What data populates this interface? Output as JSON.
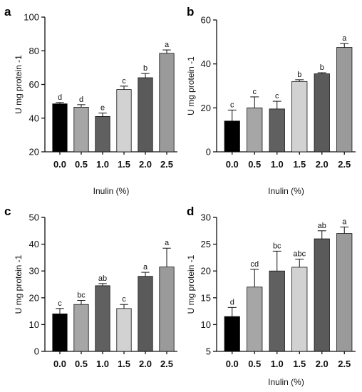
{
  "chart_data": [
    {
      "panel": "a",
      "type": "bar",
      "categories": [
        "0.0",
        "0.5",
        "1.0",
        "1.5",
        "2.0",
        "2.5"
      ],
      "values": [
        48.5,
        46.5,
        41,
        57,
        64,
        78.5
      ],
      "errors": [
        0.8,
        1.5,
        2,
        2,
        2.5,
        2
      ],
      "significance": [
        "d",
        "d",
        "e",
        "c",
        "b",
        "a"
      ],
      "bar_colors": [
        "#000000",
        "#a6a6a6",
        "#606060",
        "#d2d2d2",
        "#5a5a5a",
        "#9a9a9a"
      ],
      "ylabel": "U mg protein -1",
      "xlabel": "Inulin (%)",
      "ylim": [
        20,
        100
      ],
      "yticks": [
        "20",
        "40",
        "60",
        "80",
        "100"
      ]
    },
    {
      "panel": "b",
      "type": "bar",
      "categories": [
        "0.0",
        "0.5",
        "1.0",
        "1.5",
        "2.0",
        "2.5"
      ],
      "values": [
        14,
        20,
        19.5,
        32,
        35.5,
        47.5
      ],
      "errors": [
        5,
        5,
        3.5,
        0.8,
        0.5,
        1.8
      ],
      "significance": [
        "c",
        "c",
        "c",
        "b",
        "b",
        "a"
      ],
      "bar_colors": [
        "#000000",
        "#a6a6a6",
        "#606060",
        "#d2d2d2",
        "#5a5a5a",
        "#9a9a9a"
      ],
      "ylabel": "U mg protein -1",
      "xlabel": "Inulin (%)",
      "ylim": [
        0,
        60
      ],
      "yticks": [
        "0",
        "20",
        "40",
        "60"
      ]
    },
    {
      "panel": "c",
      "type": "bar",
      "categories": [
        "0.0",
        "0.5",
        "1.0",
        "1.5",
        "2.0",
        "2.5"
      ],
      "values": [
        14,
        17.5,
        24.5,
        16,
        28,
        31.5
      ],
      "errors": [
        2,
        1.5,
        0.8,
        1.5,
        1.5,
        7
      ],
      "significance": [
        "c",
        "bc",
        "ab",
        "c",
        "a",
        "a"
      ],
      "bar_colors": [
        "#000000",
        "#a6a6a6",
        "#606060",
        "#d2d2d2",
        "#5a5a5a",
        "#9a9a9a"
      ],
      "ylabel": "U mg protein -1",
      "xlabel": "",
      "ylim": [
        0,
        50
      ],
      "yticks": [
        "0",
        "10",
        "20",
        "30",
        "40",
        "50"
      ]
    },
    {
      "panel": "d",
      "type": "bar",
      "categories": [
        "0.0",
        "0.5",
        "1.0",
        "1.5",
        "2.0",
        "2.5"
      ],
      "values": [
        11.5,
        17,
        20,
        20.7,
        26,
        27
      ],
      "errors": [
        1.7,
        3.3,
        3.7,
        1.5,
        1.5,
        1.2
      ],
      "significance": [
        "d",
        "cd",
        "bc",
        "abc",
        "ab",
        "a"
      ],
      "bar_colors": [
        "#000000",
        "#a6a6a6",
        "#606060",
        "#d2d2d2",
        "#5a5a5a",
        "#9a9a9a"
      ],
      "ylabel": "U mg protein -1",
      "xlabel": "Inulin (%)",
      "ylim": [
        5,
        30
      ],
      "yticks": [
        "5",
        "10",
        "15",
        "20",
        "25",
        "30"
      ]
    }
  ]
}
